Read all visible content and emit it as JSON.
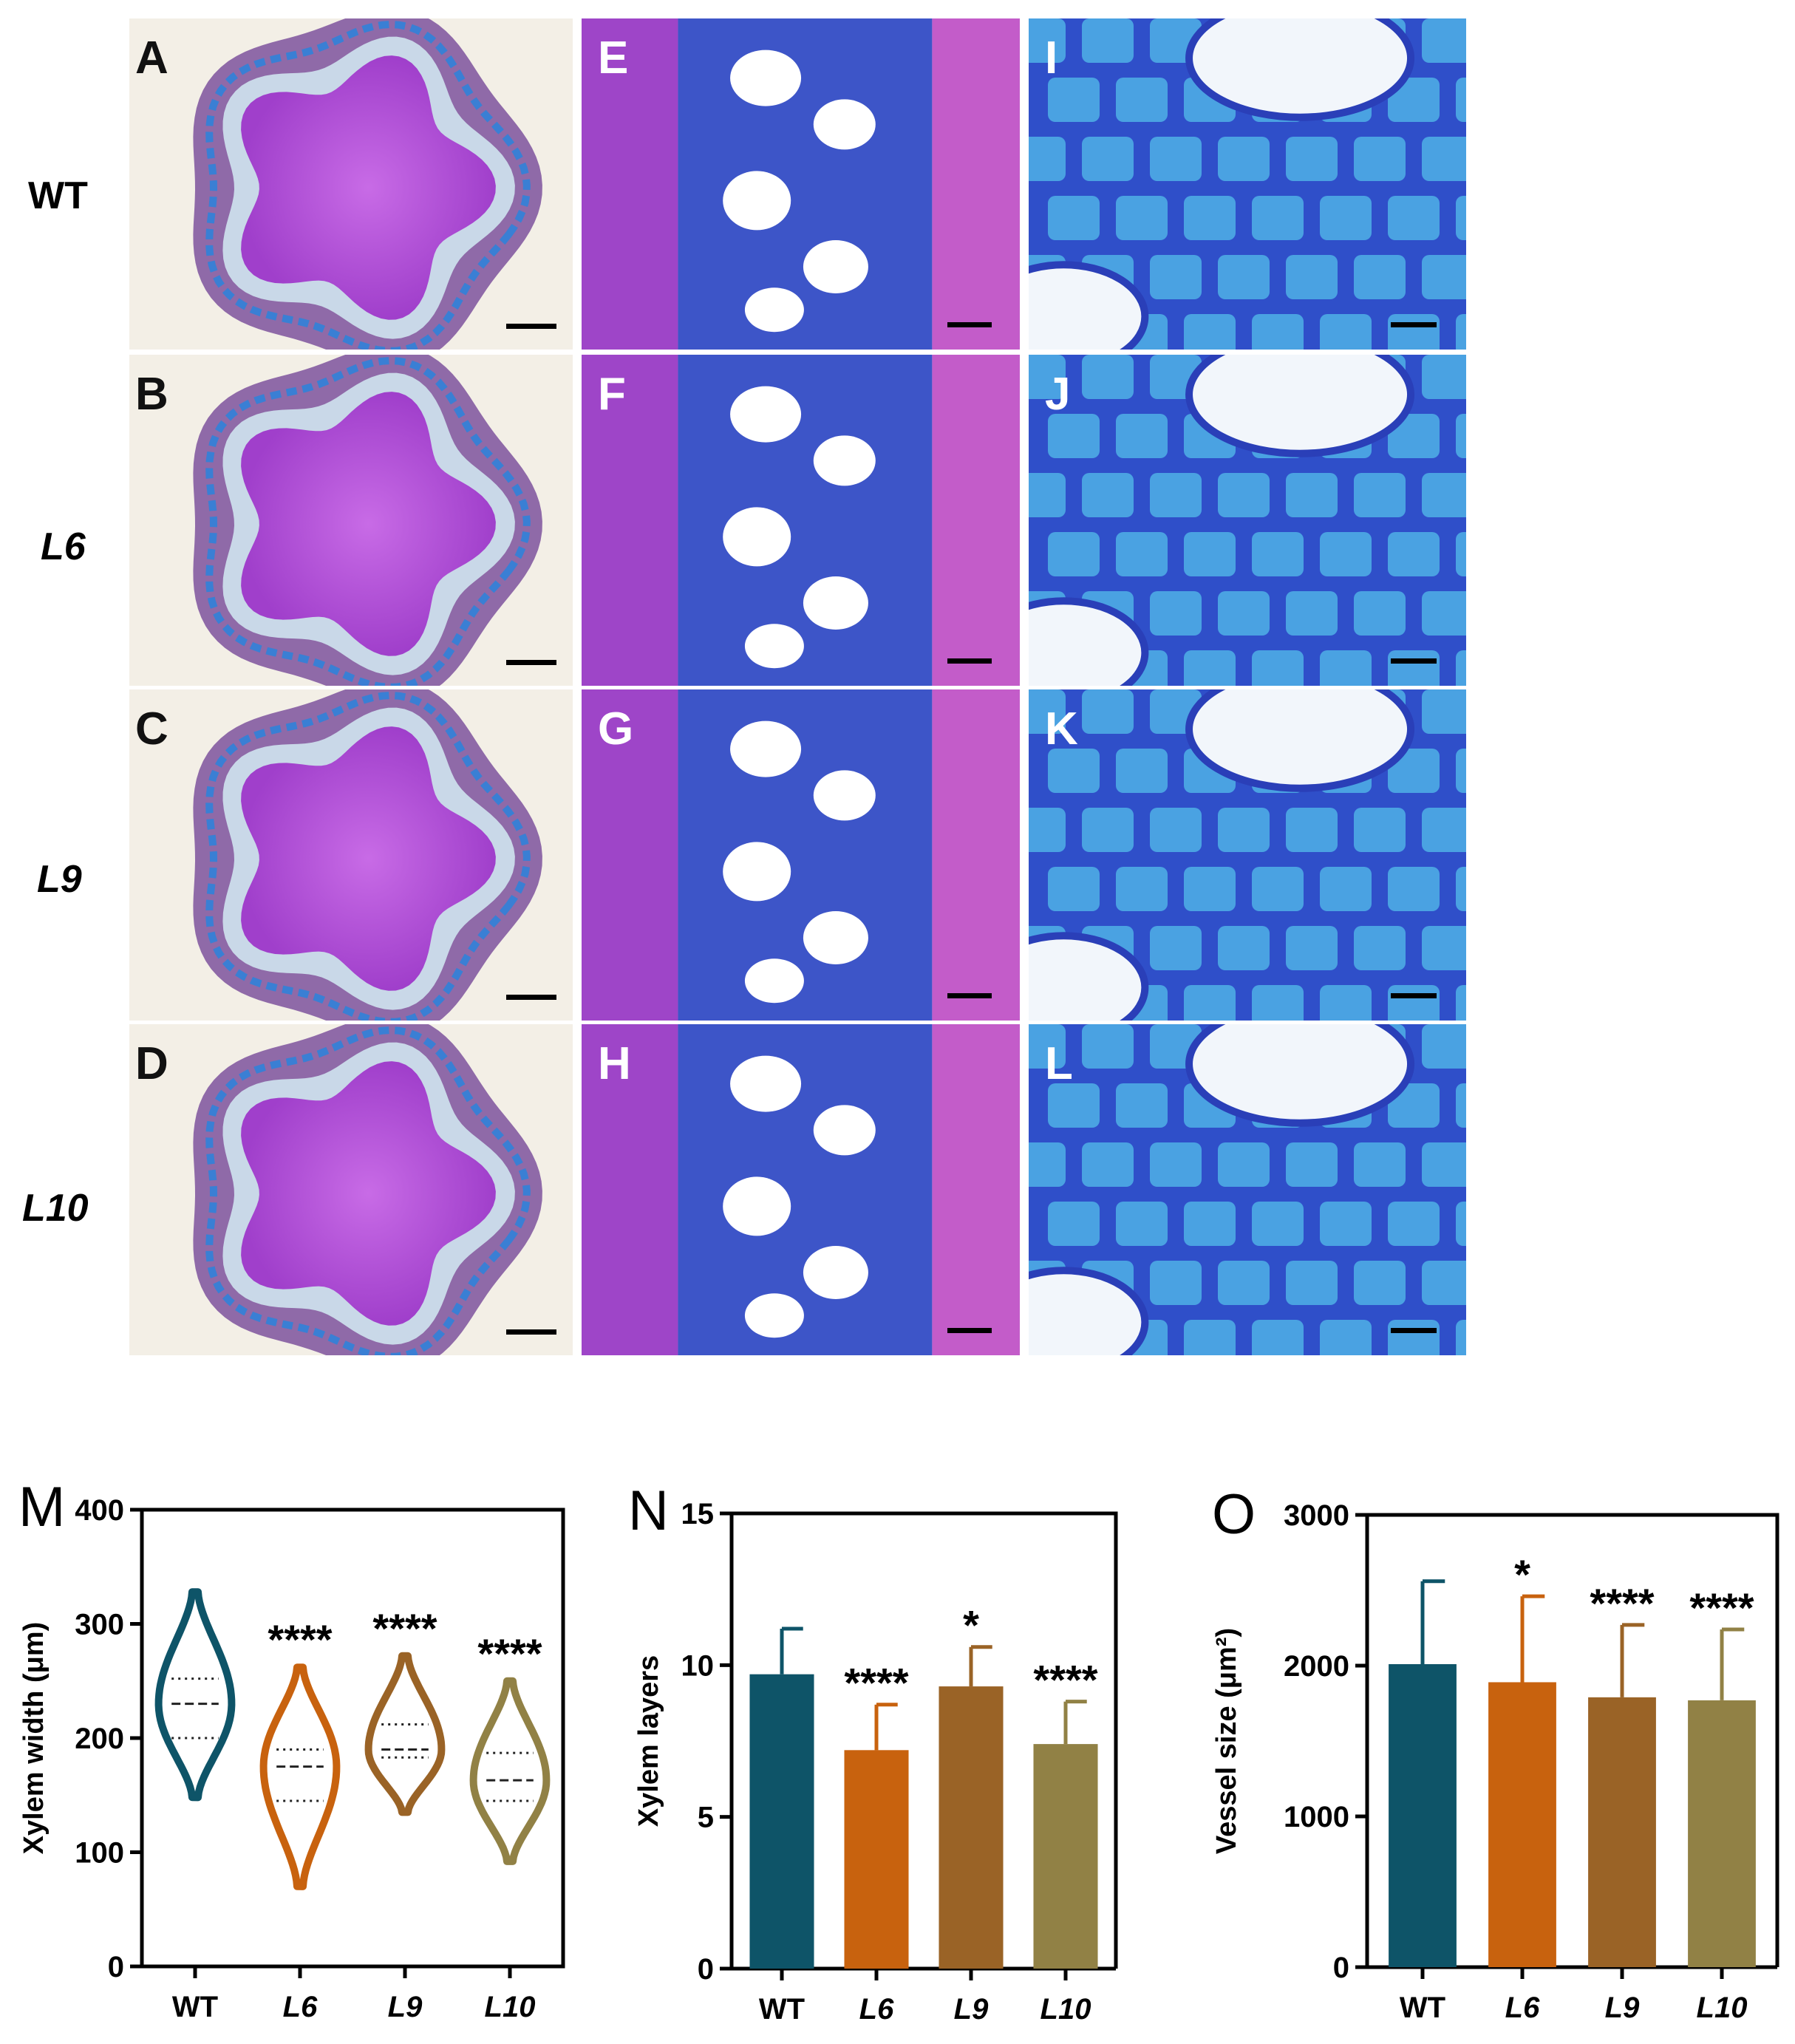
{
  "rows": [
    {
      "label": "WT",
      "italic": false
    },
    {
      "label": "L6",
      "italic": true
    },
    {
      "label": "L9",
      "italic": true
    },
    {
      "label": "L10",
      "italic": true
    }
  ],
  "panels": {
    "whole": [
      "A",
      "B",
      "C",
      "D"
    ],
    "mid": [
      "E",
      "F",
      "G",
      "H"
    ],
    "zoom": [
      "I",
      "J",
      "K",
      "L"
    ]
  },
  "colors": {
    "WT": "#0e5468",
    "L6": "#c8620e",
    "L9": "#9a6326",
    "L10": "#918145",
    "stain_purple": "#a43cd0",
    "stain_blue": "#2f5fd0"
  },
  "chart_data": [
    {
      "panel": "M",
      "type": "violin",
      "ylabel": "Xylem width (μm)",
      "ylim": [
        0,
        400
      ],
      "yticks": [
        0,
        100,
        200,
        300,
        400
      ],
      "categories": [
        "WT",
        "L6",
        "L9",
        "L10"
      ],
      "italic_categories": [
        false,
        true,
        true,
        true
      ],
      "series": [
        {
          "category": "WT",
          "min": 148,
          "max": 328,
          "q1": 200,
          "median": 230,
          "q3": 252,
          "significance": ""
        },
        {
          "category": "L6",
          "min": 70,
          "max": 262,
          "q1": 145,
          "median": 175,
          "q3": 190,
          "significance": "****"
        },
        {
          "category": "L9",
          "min": 135,
          "max": 272,
          "q1": 183,
          "median": 190,
          "q3": 212,
          "significance": "****"
        },
        {
          "category": "L10",
          "min": 92,
          "max": 250,
          "q1": 145,
          "median": 163,
          "q3": 187,
          "significance": "****"
        }
      ]
    },
    {
      "panel": "N",
      "type": "bar",
      "ylabel": "Xylem layers",
      "ylim": [
        0,
        15
      ],
      "yticks": [
        0,
        5,
        10,
        15
      ],
      "categories": [
        "WT",
        "L6",
        "L9",
        "L10"
      ],
      "italic_categories": [
        false,
        true,
        true,
        true
      ],
      "values": [
        9.7,
        7.2,
        9.3,
        7.4
      ],
      "errors": [
        1.5,
        1.5,
        1.3,
        1.4
      ],
      "significance": [
        "",
        "****",
        "*",
        "****"
      ]
    },
    {
      "panel": "O",
      "type": "bar",
      "ylabel": "Vessel size (μm²)",
      "ylim": [
        0,
        3000
      ],
      "yticks": [
        0,
        1000,
        2000,
        3000
      ],
      "categories": [
        "WT",
        "L6",
        "L9",
        "L10"
      ],
      "italic_categories": [
        false,
        true,
        true,
        true
      ],
      "values": [
        2010,
        1890,
        1790,
        1770
      ],
      "errors": [
        550,
        570,
        480,
        470
      ],
      "significance": [
        "",
        "*",
        "****",
        "****"
      ]
    }
  ]
}
